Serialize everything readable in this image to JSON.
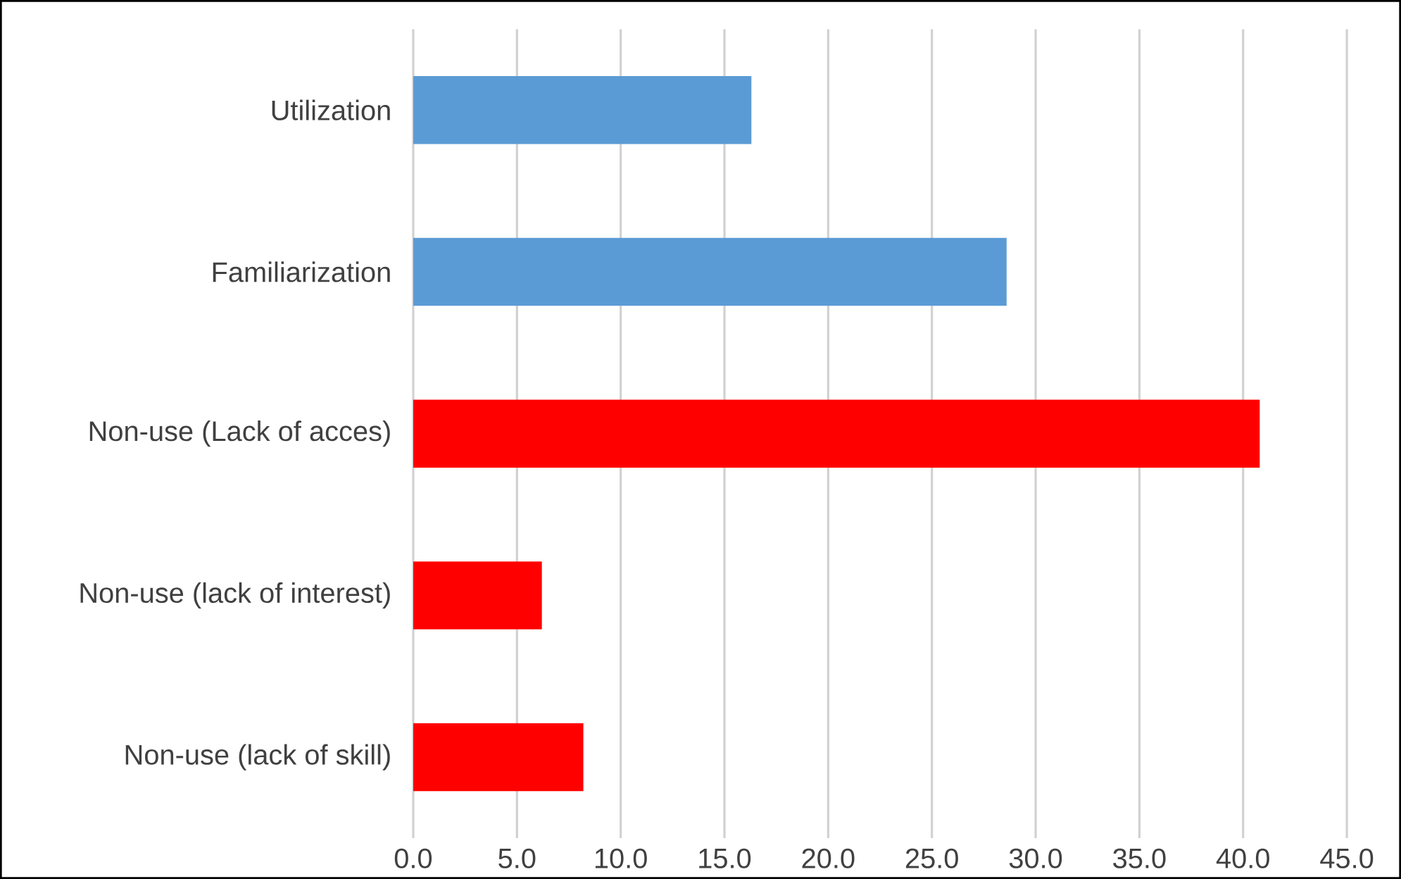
{
  "chart_data": {
    "type": "bar",
    "orientation": "horizontal",
    "categories": [
      "Utilization",
      "Familiarization",
      "Non-use (Lack of acces)",
      "Non-use (lack of interest)",
      "Non-use (lack of skill)"
    ],
    "values": [
      16.3,
      28.6,
      40.8,
      6.2,
      8.2
    ],
    "colors": [
      "#5b9bd5",
      "#5b9bd5",
      "#ff0000",
      "#ff0000",
      "#ff0000"
    ],
    "xlim": [
      0,
      45
    ],
    "xticks": [
      {
        "value": 0,
        "label": "0.0"
      },
      {
        "value": 5,
        "label": "5.0"
      },
      {
        "value": 10,
        "label": "10.0"
      },
      {
        "value": 15,
        "label": "15.0"
      },
      {
        "value": 20,
        "label": "20.0"
      },
      {
        "value": 25,
        "label": "25.0"
      },
      {
        "value": 30,
        "label": "30.0"
      },
      {
        "value": 35,
        "label": "35.0"
      },
      {
        "value": 40,
        "label": "40.0"
      },
      {
        "value": 45,
        "label": "45.0"
      }
    ],
    "grid": "x"
  }
}
